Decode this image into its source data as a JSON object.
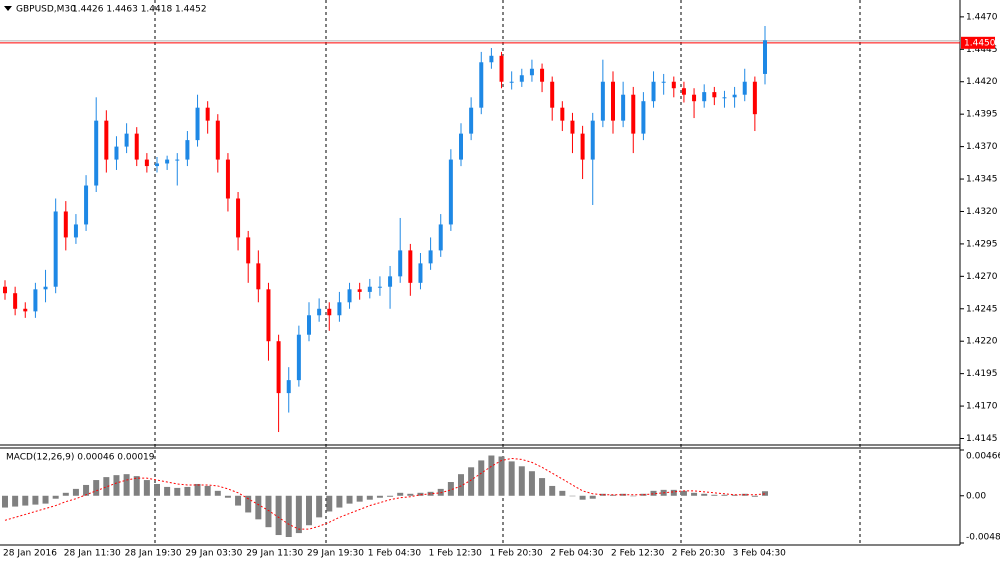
{
  "chart_data": [
    {
      "type": "candlestick",
      "title": "GBPUSD,M30",
      "quote": "1.4426 1.4463 1.4418 1.4452",
      "up_color": "#1e88e5",
      "down_color": "#ff0000",
      "categories": [
        "28 Jan 2016",
        null,
        null,
        null,
        null,
        null,
        "28 Jan 11:30",
        null,
        null,
        null,
        null,
        null,
        "28 Jan 19:30",
        null,
        null,
        null,
        null,
        null,
        "29 Jan 03:30",
        null,
        null,
        null,
        null,
        null,
        "29 Jan 11:30",
        null,
        null,
        null,
        null,
        null,
        "29 Jan 19:30",
        null,
        null,
        null,
        null,
        null,
        "1 Feb 04:30",
        null,
        null,
        null,
        null,
        null,
        "1 Feb 12:30",
        null,
        null,
        null,
        null,
        null,
        "1 Feb 20:30",
        null,
        null,
        null,
        null,
        null,
        "2 Feb 04:30",
        null,
        null,
        null,
        null,
        null,
        "2 Feb 12:30",
        null,
        null,
        null,
        null,
        null,
        "2 Feb 20:30",
        null,
        null,
        null,
        null,
        null,
        "3 Feb 04:30",
        null,
        null,
        null
      ],
      "ohlc": [
        [
          1.4262,
          1.4267,
          1.4252,
          1.4257
        ],
        [
          1.4257,
          1.4262,
          1.424,
          1.4245
        ],
        [
          1.4245,
          1.425,
          1.4238,
          1.4243
        ],
        [
          1.4243,
          1.4265,
          1.4238,
          1.426
        ],
        [
          1.426,
          1.4275,
          1.425,
          1.4262
        ],
        [
          1.4262,
          1.433,
          1.4257,
          1.432
        ],
        [
          1.432,
          1.4328,
          1.429,
          1.43
        ],
        [
          1.43,
          1.4318,
          1.4295,
          1.431
        ],
        [
          1.431,
          1.4348,
          1.4305,
          1.434
        ],
        [
          1.434,
          1.4408,
          1.4335,
          1.439
        ],
        [
          1.439,
          1.4398,
          1.435,
          1.436
        ],
        [
          1.436,
          1.4378,
          1.4352,
          1.437
        ],
        [
          1.437,
          1.4388,
          1.4365,
          1.438
        ],
        [
          1.438,
          1.4385,
          1.4355,
          1.436
        ],
        [
          1.436,
          1.4365,
          1.435,
          1.4355
        ],
        [
          1.4355,
          1.4362,
          1.435,
          1.4357
        ],
        [
          1.4357,
          1.4363,
          1.4352,
          1.436
        ],
        [
          1.436,
          1.4365,
          1.434,
          1.436
        ],
        [
          1.436,
          1.4382,
          1.4355,
          1.4375
        ],
        [
          1.4375,
          1.441,
          1.437,
          1.44
        ],
        [
          1.44,
          1.4405,
          1.438,
          1.439
        ],
        [
          1.439,
          1.4395,
          1.435,
          1.436
        ],
        [
          1.436,
          1.4365,
          1.432,
          1.433
        ],
        [
          1.433,
          1.4335,
          1.429,
          1.43
        ],
        [
          1.43,
          1.4305,
          1.4265,
          1.428
        ],
        [
          1.428,
          1.429,
          1.425,
          1.426
        ],
        [
          1.426,
          1.4265,
          1.4205,
          1.422
        ],
        [
          1.422,
          1.4225,
          1.415,
          1.418
        ],
        [
          1.418,
          1.42,
          1.4165,
          1.419
        ],
        [
          1.419,
          1.4232,
          1.4185,
          1.4225
        ],
        [
          1.4225,
          1.425,
          1.422,
          1.424
        ],
        [
          1.424,
          1.4253,
          1.4235,
          1.4245
        ],
        [
          1.4245,
          1.425,
          1.4228,
          1.424
        ],
        [
          1.424,
          1.4258,
          1.4235,
          1.425
        ],
        [
          1.425,
          1.4265,
          1.4245,
          1.426
        ],
        [
          1.426,
          1.4265,
          1.4252,
          1.4258
        ],
        [
          1.4258,
          1.4268,
          1.4253,
          1.4262
        ],
        [
          1.4262,
          1.427,
          1.4255,
          1.4262
        ],
        [
          1.4262,
          1.4278,
          1.4245,
          1.427
        ],
        [
          1.427,
          1.4315,
          1.4265,
          1.429
        ],
        [
          1.429,
          1.4295,
          1.4255,
          1.4265
        ],
        [
          1.4265,
          1.4288,
          1.426,
          1.428
        ],
        [
          1.428,
          1.43,
          1.4275,
          1.429
        ],
        [
          1.429,
          1.4318,
          1.4285,
          1.431
        ],
        [
          1.431,
          1.4368,
          1.4305,
          1.436
        ],
        [
          1.436,
          1.4388,
          1.4355,
          1.438
        ],
        [
          1.438,
          1.4408,
          1.4375,
          1.44
        ],
        [
          1.44,
          1.4443,
          1.4395,
          1.4435
        ],
        [
          1.4435,
          1.4446,
          1.443,
          1.444
        ],
        [
          1.444,
          1.4443,
          1.4415,
          1.442
        ],
        [
          1.442,
          1.4428,
          1.4414,
          1.442
        ],
        [
          1.442,
          1.443,
          1.4416,
          1.4425
        ],
        [
          1.4425,
          1.4437,
          1.442,
          1.443
        ],
        [
          1.443,
          1.4434,
          1.4412,
          1.442
        ],
        [
          1.442,
          1.4424,
          1.439,
          1.44
        ],
        [
          1.44,
          1.4405,
          1.4382,
          1.439
        ],
        [
          1.439,
          1.4396,
          1.4365,
          1.438
        ],
        [
          1.438,
          1.4386,
          1.4345,
          1.436
        ],
        [
          1.436,
          1.4396,
          1.4325,
          1.439
        ],
        [
          1.439,
          1.4437,
          1.4385,
          1.442
        ],
        [
          1.442,
          1.4428,
          1.438,
          1.439
        ],
        [
          1.439,
          1.442,
          1.4385,
          1.441
        ],
        [
          1.441,
          1.4416,
          1.4365,
          1.438
        ],
        [
          1.438,
          1.4412,
          1.4375,
          1.4405
        ],
        [
          1.4405,
          1.4428,
          1.44,
          1.442
        ],
        [
          1.442,
          1.4426,
          1.441,
          1.442
        ],
        [
          1.442,
          1.4424,
          1.4408,
          1.4415
        ],
        [
          1.4415,
          1.442,
          1.4404,
          1.441
        ],
        [
          1.441,
          1.4415,
          1.4392,
          1.4405
        ],
        [
          1.4405,
          1.4418,
          1.44,
          1.4412
        ],
        [
          1.4412,
          1.4416,
          1.4402,
          1.4408
        ],
        [
          1.4408,
          1.4413,
          1.44,
          1.4408
        ],
        [
          1.4408,
          1.4416,
          1.44,
          1.441
        ],
        [
          1.441,
          1.443,
          1.4405,
          1.442
        ],
        [
          1.442,
          1.4424,
          1.4382,
          1.4395
        ],
        [
          1.4426,
          1.4463,
          1.4418,
          1.4452
        ]
      ],
      "price_line": {
        "value": 1.445,
        "label": "1.4450"
      },
      "ylim": [
        1.414,
        1.4483
      ],
      "yticks": [
        {
          "value": 1.447,
          "label": "1.4470"
        },
        {
          "value": 1.4445,
          "label": "1.4445"
        },
        {
          "value": 1.442,
          "label": "1.4420"
        },
        {
          "value": 1.4395,
          "label": "1.4395"
        },
        {
          "value": 1.437,
          "label": "1.4370"
        },
        {
          "value": 1.4345,
          "label": "1.4345"
        },
        {
          "value": 1.432,
          "label": "1.4320"
        },
        {
          "value": 1.4295,
          "label": "1.4295"
        },
        {
          "value": 1.427,
          "label": "1.4270"
        },
        {
          "value": 1.4245,
          "label": "1.4245"
        },
        {
          "value": 1.422,
          "label": "1.4220"
        },
        {
          "value": 1.4195,
          "label": "1.4195"
        },
        {
          "value": 1.417,
          "label": "1.4170"
        },
        {
          "value": 1.4145,
          "label": "1.4145"
        }
      ]
    },
    {
      "type": "macd",
      "title": "MACD(12,26,9) 0.00046 0.00019",
      "series": [
        {
          "name": "MACD",
          "color": "#808080",
          "values": [
            -0.0012,
            -0.0011,
            -0.001,
            -0.0009,
            -0.0008,
            -0.0003,
            0.0003,
            0.0007,
            0.0011,
            0.0016,
            0.0019,
            0.0021,
            0.0022,
            0.002,
            0.0016,
            0.0012,
            0.0009,
            0.0008,
            0.0009,
            0.0012,
            0.001,
            0.0005,
            -0.0002,
            -0.001,
            -0.0017,
            -0.0024,
            -0.0032,
            -0.004,
            -0.0042,
            -0.0038,
            -0.003,
            -0.0022,
            -0.0016,
            -0.0012,
            -0.0008,
            -0.0006,
            -0.0004,
            -0.0002,
            -0.0001,
            0.0003,
            0.0002,
            0.0003,
            0.0004,
            0.0007,
            0.0014,
            0.0022,
            0.0029,
            0.0036,
            0.0041,
            0.004,
            0.0035,
            0.003,
            0.0025,
            0.0018,
            0.001,
            0.0005,
            0,
            -0.0004,
            -0.0003,
            0.0002,
            0.0001,
            0.0002,
            0,
            0.0002,
            0.0005,
            0.0006,
            0.0006,
            0.0005,
            0.0003,
            0.0002,
            0.0001,
            0.0001,
            0.0001,
            0.0002,
            -0.0001,
            0.00046
          ]
        },
        {
          "name": "Signal",
          "color": "#ff0000",
          "values": [
            -0.0025,
            -0.0022,
            -0.0019,
            -0.0016,
            -0.0013,
            -0.001,
            -0.0006,
            -0.0003,
            0.0001,
            0.0005,
            0.0009,
            0.0013,
            0.0016,
            0.0018,
            0.0018,
            0.0016,
            0.0014,
            0.0012,
            0.0011,
            0.0011,
            0.0011,
            0.001,
            0.0007,
            0.0003,
            -0.0003,
            -0.0009,
            -0.0015,
            -0.0022,
            -0.0029,
            -0.0034,
            -0.0034,
            -0.0031,
            -0.0027,
            -0.0022,
            -0.0018,
            -0.0014,
            -0.001,
            -0.0007,
            -0.0004,
            -0.0002,
            -0.0001,
            0.0001,
            0.0002,
            0.0003,
            0.0006,
            0.001,
            0.0016,
            0.0023,
            0.003,
            0.0036,
            0.0038,
            0.0037,
            0.0034,
            0.0029,
            0.0023,
            0.0017,
            0.0011,
            0.0005,
            0.0002,
            0.0001,
            0.0001,
            0.0001,
            0.0001,
            0.0001,
            0.0002,
            0.0003,
            0.0004,
            0.0005,
            0.0005,
            0.0004,
            0.0003,
            0.0002,
            0.0001,
            0.0001,
            0.0001,
            0.00019
          ]
        }
      ],
      "ylim": [
        -0.00481,
        0.00466
      ],
      "yticks": [
        0.00466,
        {
          "value": 0,
          "label": "0.00"
        },
        -0.00481
      ]
    }
  ]
}
